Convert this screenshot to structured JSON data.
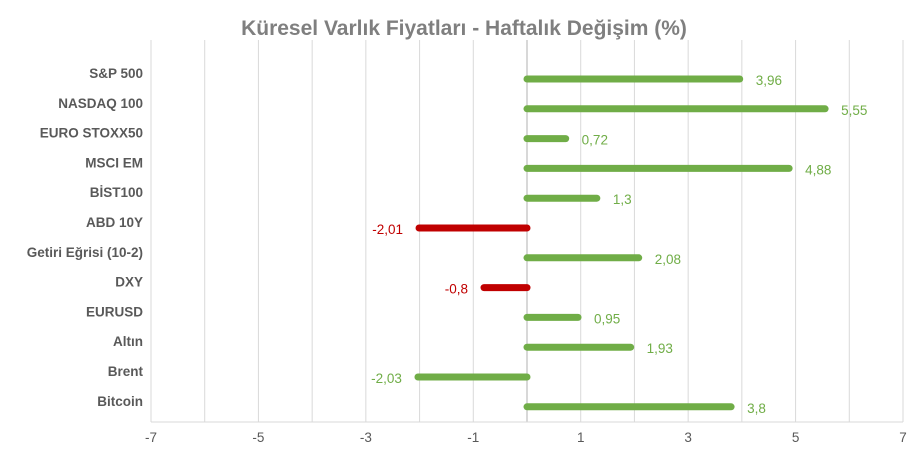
{
  "chart_data": {
    "type": "bar",
    "orientation": "horizontal",
    "title": "Küresel Varlık Fiyatları - Haftalık Değişim (%)",
    "categories": [
      "S&P 500",
      "NASDAQ 100",
      "EURO STOXX50",
      "MSCI EM",
      "BİST100",
      "ABD 10Y",
      "Getiri Eğrisi (10-2)",
      "DXY",
      "EURUSD",
      "Altın",
      "Brent",
      "Bitcoin"
    ],
    "values": [
      3.96,
      5.55,
      0.72,
      4.88,
      1.3,
      -2.01,
      2.08,
      -0.8,
      0.95,
      1.93,
      -2.03,
      3.8
    ],
    "value_labels": [
      "3,96",
      "5,55",
      "0,72",
      "4,88",
      "1,3",
      "-2,01",
      "2,08",
      "-0,8",
      "0,95",
      "1,93",
      "-2,03",
      "3,8"
    ],
    "bar_colors": [
      "#70ad47",
      "#70ad47",
      "#70ad47",
      "#70ad47",
      "#70ad47",
      "#c00000",
      "#70ad47",
      "#c00000",
      "#70ad47",
      "#70ad47",
      "#70ad47",
      "#70ad47"
    ],
    "label_colors": [
      "#70ad47",
      "#70ad47",
      "#70ad47",
      "#70ad47",
      "#70ad47",
      "#c00000",
      "#70ad47",
      "#c00000",
      "#70ad47",
      "#70ad47",
      "#70ad47",
      "#70ad47"
    ],
    "x_ticks": [
      "-7",
      "-5",
      "-3",
      "-1",
      "1",
      "3",
      "5",
      "7"
    ],
    "xlim": [
      -7,
      7
    ],
    "grid": true,
    "legend": "none"
  }
}
